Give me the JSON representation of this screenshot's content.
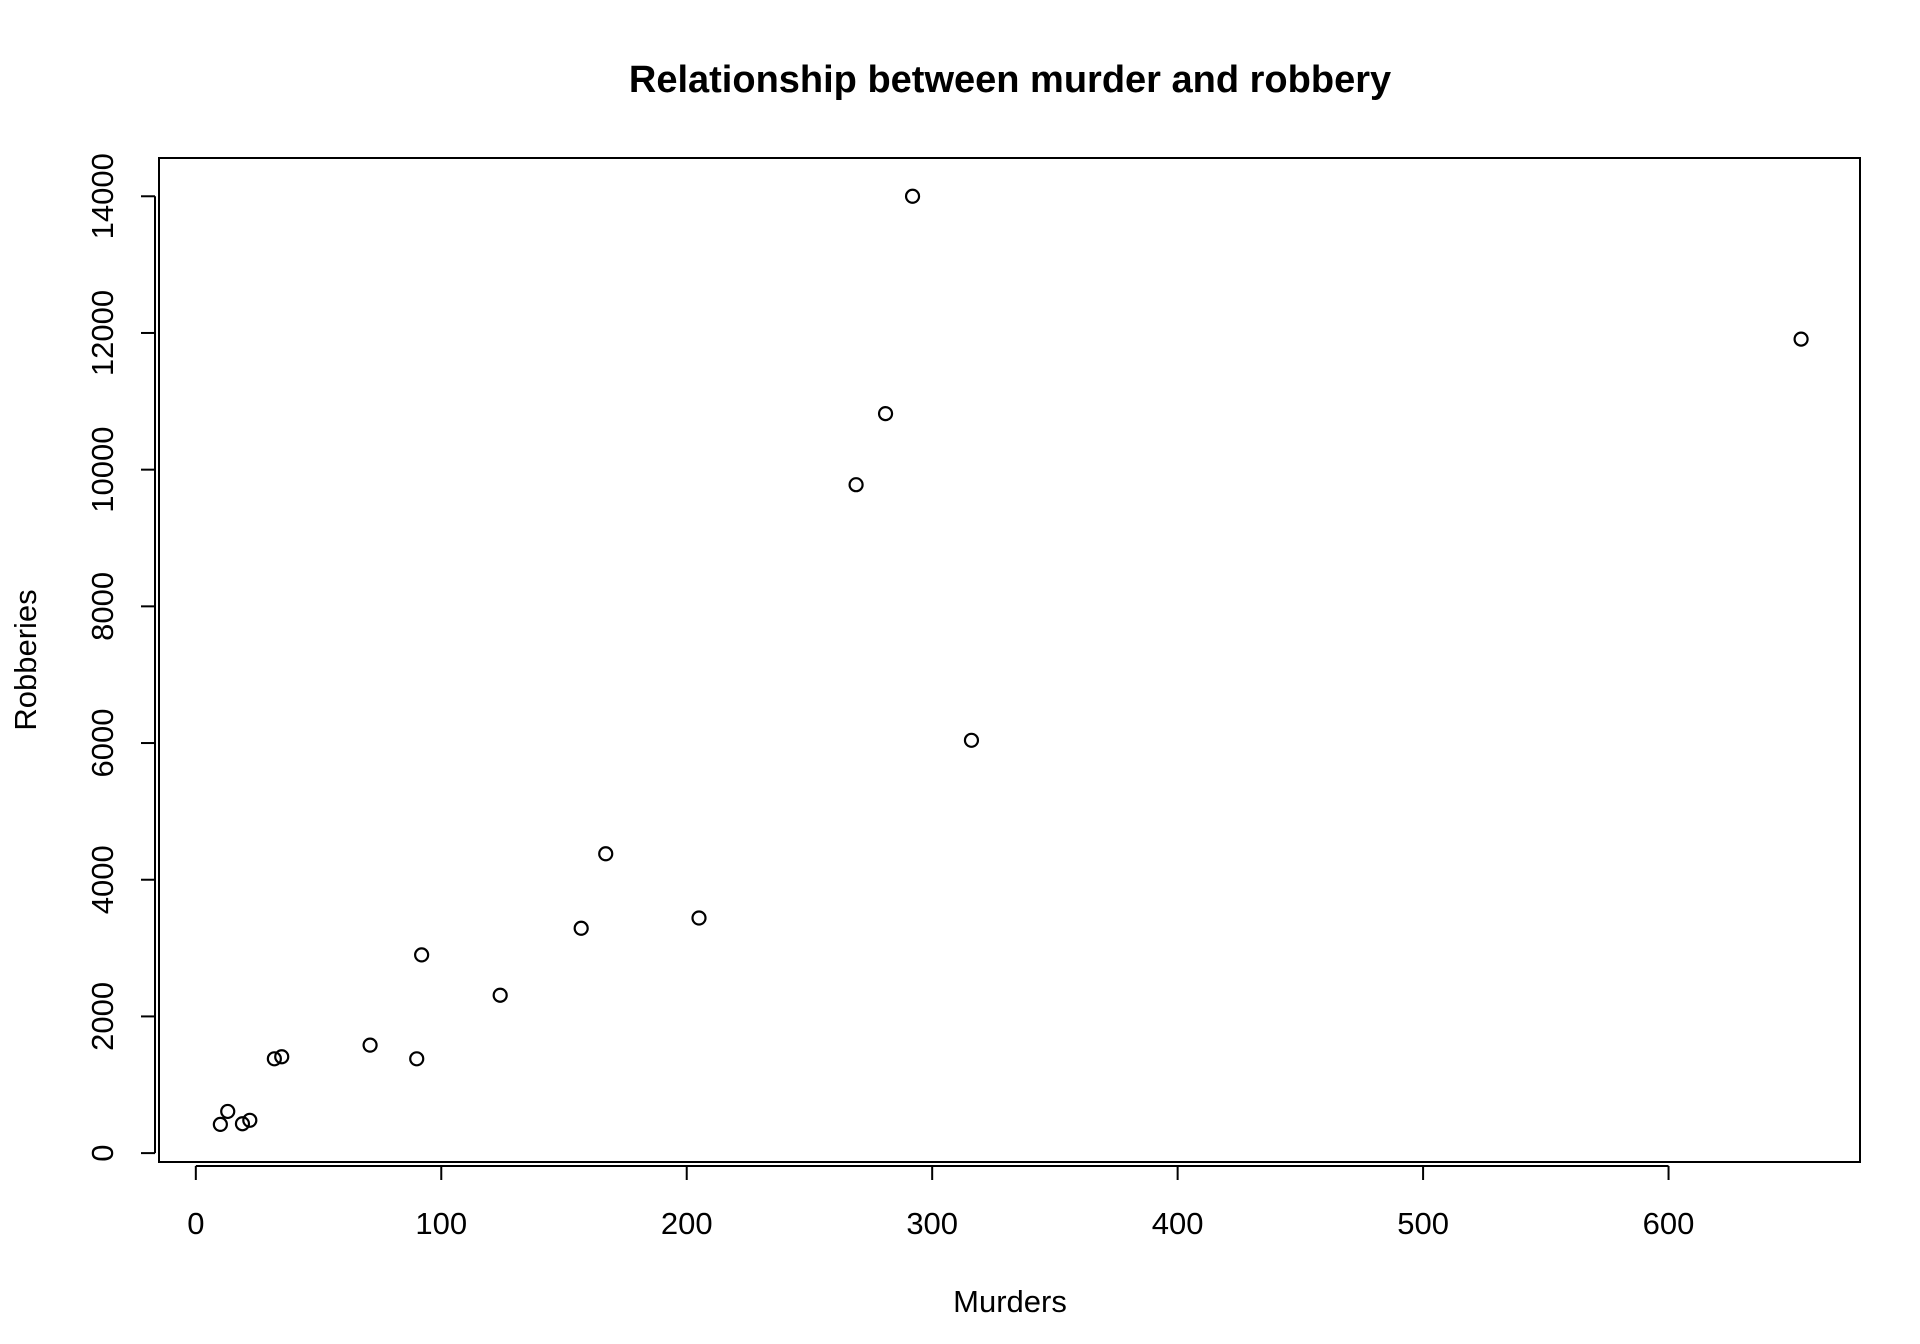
{
  "chart_data": {
    "type": "scatter",
    "title": "Relationship between murder and robbery",
    "xlabel": "Murders",
    "ylabel": "Robberies",
    "xlim": [
      -15,
      678
    ],
    "ylim": [
      -130,
      14560
    ],
    "x_ticks": [
      0,
      100,
      200,
      300,
      400,
      500,
      600
    ],
    "y_ticks": [
      0,
      2000,
      4000,
      6000,
      8000,
      10000,
      12000,
      14000
    ],
    "grid": false,
    "points": [
      {
        "x": 10,
        "y": 420
      },
      {
        "x": 13,
        "y": 610
      },
      {
        "x": 19,
        "y": 430
      },
      {
        "x": 22,
        "y": 480
      },
      {
        "x": 32,
        "y": 1380
      },
      {
        "x": 35,
        "y": 1410
      },
      {
        "x": 71,
        "y": 1580
      },
      {
        "x": 90,
        "y": 1380
      },
      {
        "x": 92,
        "y": 2900
      },
      {
        "x": 124,
        "y": 2310
      },
      {
        "x": 157,
        "y": 3290
      },
      {
        "x": 167,
        "y": 4380
      },
      {
        "x": 205,
        "y": 3440
      },
      {
        "x": 269,
        "y": 9780
      },
      {
        "x": 281,
        "y": 10820
      },
      {
        "x": 292,
        "y": 14000
      },
      {
        "x": 316,
        "y": 6040
      },
      {
        "x": 654,
        "y": 11910
      }
    ]
  }
}
